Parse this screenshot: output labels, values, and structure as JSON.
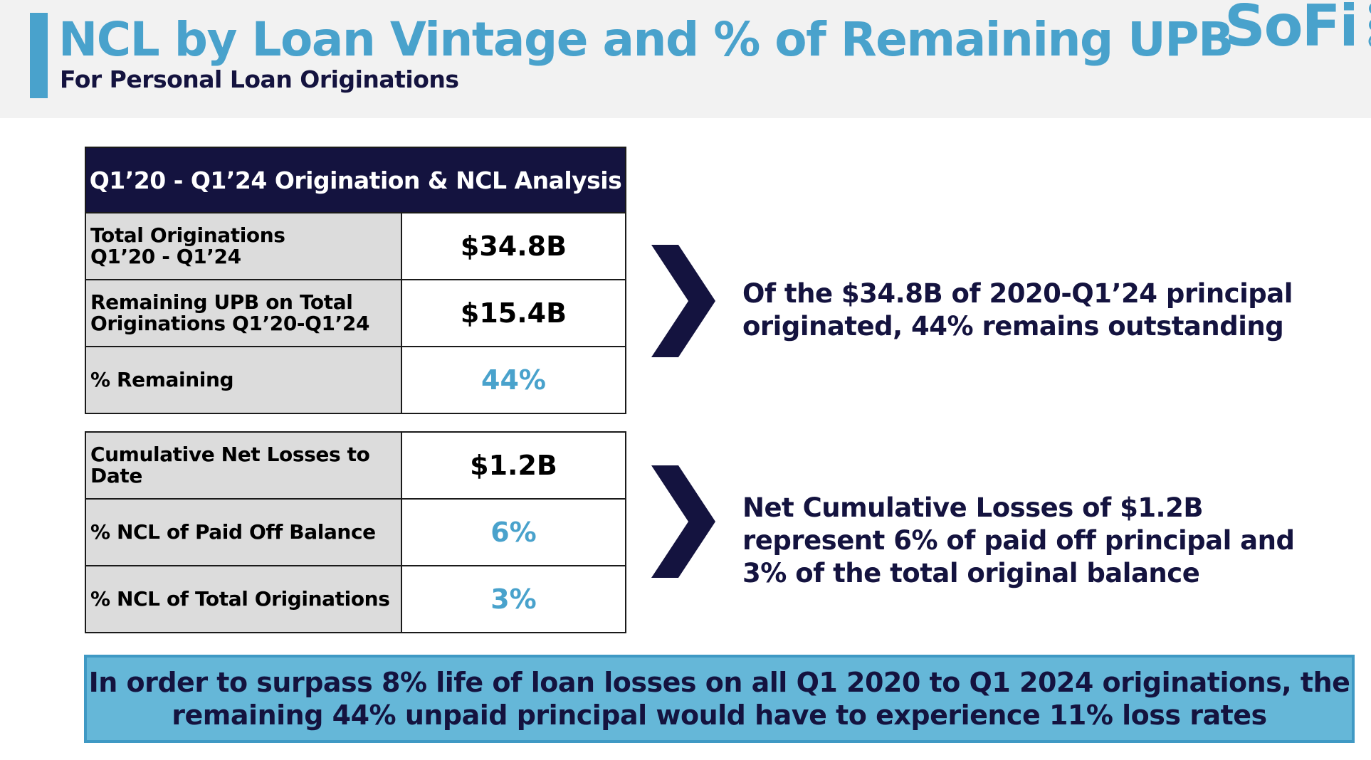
{
  "header": {
    "title": "NCL by Loan Vintage and % of Remaining UPB",
    "subtitle": "For Personal Loan Originations",
    "logo_text": "SoFi"
  },
  "table1": {
    "header": "Q1’20 - Q1’24 Origination & NCL Analysis",
    "rows": [
      {
        "label_line1": "Total Originations",
        "label_line2": "Q1’20 - Q1’24",
        "value": "$34.8B"
      },
      {
        "label_line1": "Remaining UPB on Total",
        "label_line2": "Originations Q1’20-Q1’24",
        "value": "$15.4B"
      },
      {
        "label_line1": "% Remaining",
        "label_line2": "",
        "value": "44%"
      }
    ]
  },
  "table2": {
    "rows": [
      {
        "label_line1": "Cumulative Net Losses to",
        "label_line2": "Date",
        "value": "$1.2B"
      },
      {
        "label_line1": "% NCL of Paid Off Balance",
        "label_line2": "",
        "value": "6%"
      },
      {
        "label_line1": "% NCL of Total Originations",
        "label_line2": "",
        "value": "3%"
      }
    ]
  },
  "callouts": {
    "first": "Of the $34.8B of 2020-Q1’24 principal originated, 44% remains outstanding",
    "second": "Net Cumulative Losses of $1.2B represent 6% of paid off principal and 3% of the total original balance"
  },
  "banner": {
    "line1": "In order to surpass 8% life of loan losses on all Q1 2020 to Q1 2024 originations, the",
    "line2": "remaining 44% unpaid principal would have to experience 11% loss rates"
  },
  "colors": {
    "accent": "#49a2cc",
    "navy": "#14133f",
    "banner_bg": "#65b7d8",
    "label_bg": "#dcdcdc"
  },
  "icons": {
    "chevron": "chevron-right-icon",
    "logo_mark": "sofi-logo-mark-icon"
  }
}
